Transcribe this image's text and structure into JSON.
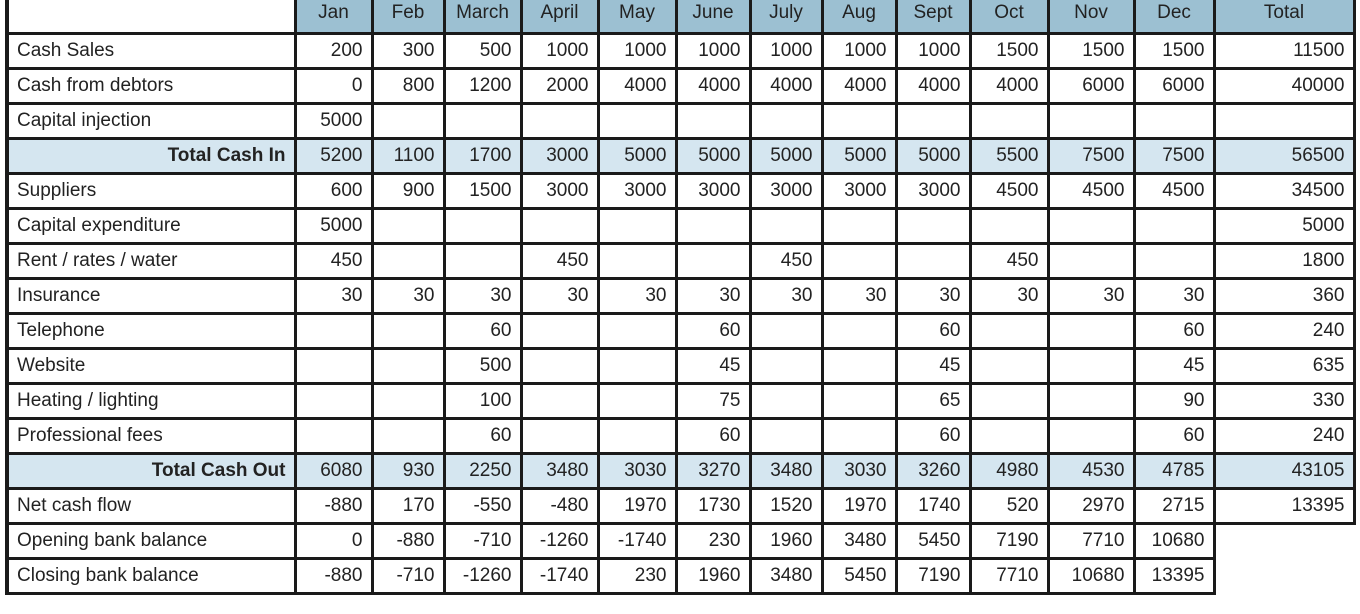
{
  "header": {
    "months": [
      "Jan",
      "Feb",
      "March",
      "April",
      "May",
      "June",
      "July",
      "Aug",
      "Sept",
      "Oct",
      "Nov",
      "Dec"
    ],
    "total": "Total"
  },
  "colors": {
    "header_bg": "#9cc0d2",
    "total_row_bg": "#d5e6f0",
    "border": "#1a1a1a"
  },
  "rows": [
    {
      "label": "Cash Sales",
      "values": [
        "200",
        "300",
        "500",
        "1000",
        "1000",
        "1000",
        "1000",
        "1000",
        "1000",
        "1500",
        "1500",
        "1500"
      ],
      "total": "11500"
    },
    {
      "label": "Cash from debtors",
      "values": [
        "0",
        "800",
        "1200",
        "2000",
        "4000",
        "4000",
        "4000",
        "4000",
        "4000",
        "4000",
        "6000",
        "6000"
      ],
      "total": "40000"
    },
    {
      "label": "Capital injection",
      "values": [
        "5000",
        "",
        "",
        "",
        "",
        "",
        "",
        "",
        "",
        "",
        "",
        ""
      ],
      "total": ""
    },
    {
      "label": "Total Cash In",
      "is_total": true,
      "values": [
        "5200",
        "1100",
        "1700",
        "3000",
        "5000",
        "5000",
        "5000",
        "5000",
        "5000",
        "5500",
        "7500",
        "7500"
      ],
      "total": "56500"
    },
    {
      "label": "Suppliers",
      "values": [
        "600",
        "900",
        "1500",
        "3000",
        "3000",
        "3000",
        "3000",
        "3000",
        "3000",
        "4500",
        "4500",
        "4500"
      ],
      "total": "34500"
    },
    {
      "label": "Capital expenditure",
      "values": [
        "5000",
        "",
        "",
        "",
        "",
        "",
        "",
        "",
        "",
        "",
        "",
        ""
      ],
      "total": "5000"
    },
    {
      "label": "Rent / rates / water",
      "values": [
        "450",
        "",
        "",
        "450",
        "",
        "",
        "450",
        "",
        "",
        "450",
        "",
        ""
      ],
      "total": "1800"
    },
    {
      "label": "Insurance",
      "values": [
        "30",
        "30",
        "30",
        "30",
        "30",
        "30",
        "30",
        "30",
        "30",
        "30",
        "30",
        "30"
      ],
      "total": "360"
    },
    {
      "label": "Telephone",
      "values": [
        "",
        "",
        "60",
        "",
        "",
        "60",
        "",
        "",
        "60",
        "",
        "",
        "60"
      ],
      "total": "240"
    },
    {
      "label": "Website",
      "values": [
        "",
        "",
        "500",
        "",
        "",
        "45",
        "",
        "",
        "45",
        "",
        "",
        "45"
      ],
      "total": "635"
    },
    {
      "label": "Heating / lighting",
      "values": [
        "",
        "",
        "100",
        "",
        "",
        "75",
        "",
        "",
        "65",
        "",
        "",
        "90"
      ],
      "total": "330"
    },
    {
      "label": "Professional fees",
      "values": [
        "",
        "",
        "60",
        "",
        "",
        "60",
        "",
        "",
        "60",
        "",
        "",
        "60"
      ],
      "total": "240"
    },
    {
      "label": "Total Cash Out",
      "is_total": true,
      "values": [
        "6080",
        "930",
        "2250",
        "3480",
        "3030",
        "3270",
        "3480",
        "3030",
        "3260",
        "4980",
        "4530",
        "4785"
      ],
      "total": "43105"
    },
    {
      "label": "Net cash flow",
      "values": [
        "-880",
        "170",
        "-550",
        "-480",
        "1970",
        "1730",
        "1520",
        "1970",
        "1740",
        "520",
        "2970",
        "2715"
      ],
      "total": "13395"
    },
    {
      "label": "Opening bank balance",
      "values": [
        "0",
        "-880",
        "-710",
        "-1260",
        "-1740",
        "230",
        "1960",
        "3480",
        "5450",
        "7190",
        "7710",
        "10680"
      ],
      "no_total": true
    },
    {
      "label": "Closing bank balance",
      "values": [
        "-880",
        "-710",
        "-1260",
        "-1740",
        "230",
        "1960",
        "3480",
        "5450",
        "7190",
        "7710",
        "10680",
        "13395"
      ],
      "no_total": true
    }
  ]
}
